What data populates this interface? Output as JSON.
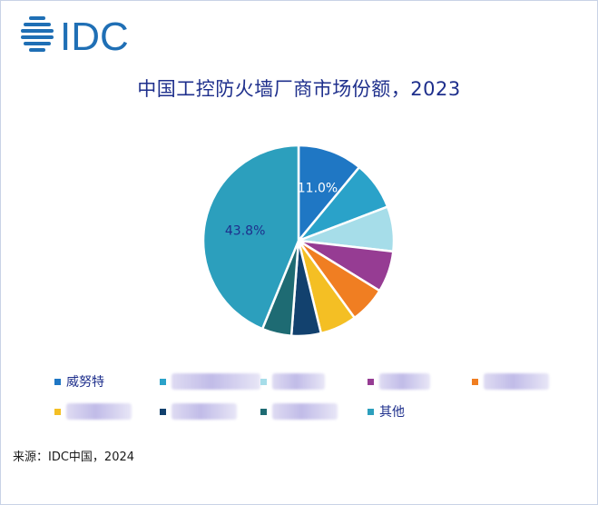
{
  "header": {
    "logo_text": "IDC"
  },
  "chart_data": {
    "type": "pie",
    "title": "中国工控防火墙厂商市场份额，2023",
    "slices": [
      {
        "name": "威努特",
        "value": 11.0,
        "color": "#1f77c4",
        "label": "11.0%"
      },
      {
        "name": "",
        "value": 8.2,
        "color": "#2aa2c9",
        "label": ""
      },
      {
        "name": "",
        "value": 7.6,
        "color": "#a6dde9",
        "label": ""
      },
      {
        "name": "",
        "value": 7.0,
        "color": "#963c93",
        "label": ""
      },
      {
        "name": "",
        "value": 6.2,
        "color": "#f07e22",
        "label": ""
      },
      {
        "name": "",
        "value": 6.2,
        "color": "#f4bf24",
        "label": ""
      },
      {
        "name": "",
        "value": 5.0,
        "color": "#12416e",
        "label": ""
      },
      {
        "name": "",
        "value": 5.0,
        "color": "#1e6b73",
        "label": ""
      },
      {
        "name": "其他",
        "value": 43.8,
        "color": "#2c9fbd",
        "label": "43.8%"
      }
    ],
    "legend_position": "bottom"
  },
  "legend": {
    "items": [
      {
        "label": "威努特",
        "color": "#1f77c4",
        "masked": false
      },
      {
        "label": "",
        "color": "#2aa2c9",
        "masked": true
      },
      {
        "label": "",
        "color": "#a6dde9",
        "masked": true
      },
      {
        "label": "",
        "color": "#963c93",
        "masked": true
      },
      {
        "label": "",
        "color": "#f07e22",
        "masked": true
      },
      {
        "label": "",
        "color": "#f4bf24",
        "masked": true
      },
      {
        "label": "",
        "color": "#12416e",
        "masked": true
      },
      {
        "label": "",
        "color": "#1e6b73",
        "masked": true
      },
      {
        "label": "其他",
        "color": "#2c9fbd",
        "masked": false
      }
    ]
  },
  "footer": {
    "source": "来源：IDC中国，2024"
  }
}
